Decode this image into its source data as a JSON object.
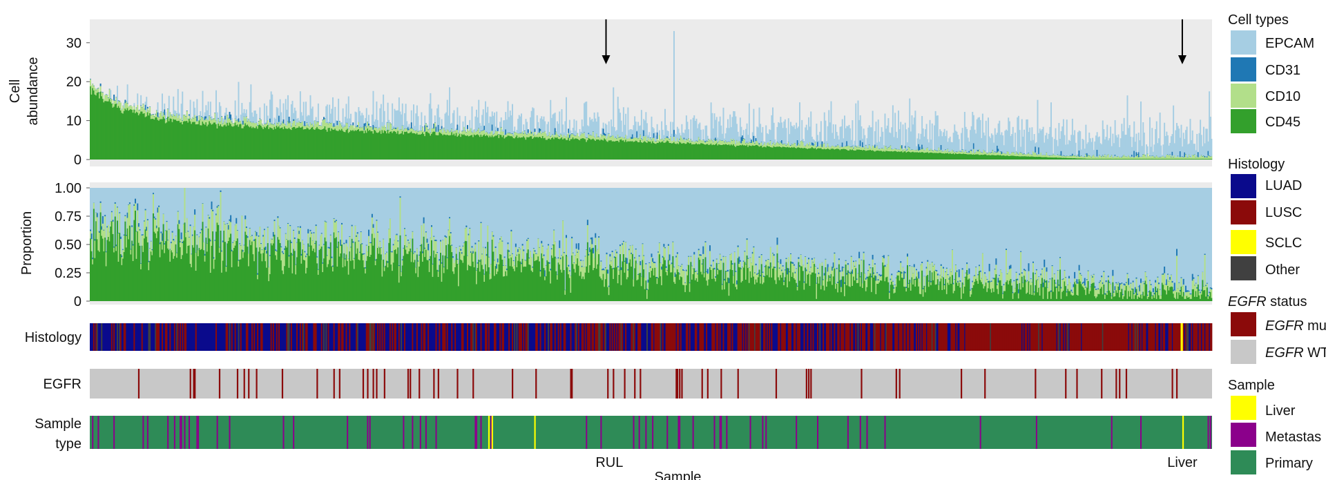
{
  "colors": {
    "EPCAM": "#a6cee3",
    "CD31": "#1f78b4",
    "CD10": "#b2df8a",
    "CD45": "#33a02c",
    "LUAD": "#0a0a8c",
    "LUSC": "#8b0a0a",
    "SCLC": "#ffff00",
    "Other": "#404040",
    "EGFR_mut": "#8b0a0a",
    "EGFR_WT": "#c8c8c8",
    "Liver": "#ffff00",
    "Metastasis": "#8b008b",
    "Primary": "#2e8b57",
    "panel_bg": "#ebebeb"
  },
  "legend": {
    "cell_types_title": "Cell types",
    "cell_types": [
      "EPCAM",
      "CD31",
      "CD10",
      "CD45"
    ],
    "histology_title": "Histology",
    "histology": [
      "LUAD",
      "LUSC",
      "SCLC",
      "Other"
    ],
    "egfr_title_italic": "EGFR",
    "egfr_title_rest": " status",
    "egfr_items": [
      {
        "italic": "EGFR",
        "rest": " mu"
      },
      {
        "italic": "EGFR",
        "rest": " WT"
      }
    ],
    "sample_title": "Sample",
    "sample": [
      "Liver",
      "Metastas",
      "Primary"
    ]
  },
  "chart_data": {
    "type": "bar",
    "n_samples": 1000,
    "stacking_order": [
      "CD45",
      "CD10",
      "CD31",
      "EPCAM"
    ],
    "x_label": "Sample",
    "x_annotations": [
      {
        "label": "RUL",
        "sample_fraction": 0.463
      },
      {
        "label": "Liver",
        "sample_fraction": 0.9735
      }
    ],
    "arrows_at_sample_fraction": [
      0.46,
      0.9735
    ],
    "panels": [
      {
        "id": "abundance",
        "ylabel": [
          "Cell",
          "abundance"
        ],
        "ylim": [
          0,
          36
        ],
        "yticks": [
          0,
          10,
          20,
          30
        ],
        "ytick_labels": [
          "0",
          "10",
          "20",
          "30"
        ],
        "description": "stacked cell abundance per sample, sorted by CD45 decreasing",
        "cd45_profile": {
          "start": 18,
          "fast_decay": 8,
          "fast_rate": 30,
          "linear_drop_end": 0.2
        },
        "total_profile": {
          "mean_start": 12.5,
          "mean_end": 6,
          "noise": 4,
          "max_observed": 33
        }
      },
      {
        "id": "proportion",
        "ylabel": [
          "Proportion"
        ],
        "ylim": [
          0,
          1
        ],
        "yticks": [
          0,
          0.25,
          0.5,
          0.75,
          1
        ],
        "ytick_labels": [
          "0",
          "0.25",
          "0.50",
          "0.75",
          "1.00"
        ],
        "description": "stacked cell type proportions per sample (sum = 1)",
        "cd45_proportion_profile": {
          "start": 0.55,
          "end": 0.05,
          "noise": 0.18
        },
        "cd10_proportion_mean": 0.1,
        "cd31_proportion_mean": 0.015
      }
    ],
    "tracks": [
      {
        "id": "histology",
        "label": [
          "Histology"
        ],
        "categories": [
          "LUAD",
          "LUSC",
          "SCLC",
          "Other"
        ],
        "approx_mix": "LUAD dominant in first ~60% of samples, increasingly LUSC toward right; single SCLC at ~0.9735"
      },
      {
        "id": "egfr",
        "label": [
          "EGFR"
        ],
        "categories": [
          "EGFR_WT",
          "EGFR_mut"
        ],
        "mut_positions": [
          0.043,
          0.089,
          0.093,
          0.092,
          0.115,
          0.131,
          0.137,
          0.141,
          0.148,
          0.171,
          0.202,
          0.217,
          0.222,
          0.255,
          0.262,
          0.285,
          0.293,
          0.306,
          0.243,
          0.247,
          0.252,
          0.31,
          0.283,
          0.327,
          0.341,
          0.376,
          0.397,
          0.428,
          0.429,
          0.461,
          0.466,
          0.476,
          0.485,
          0.49,
          0.522,
          0.523,
          0.525,
          0.527,
          0.545,
          0.55,
          0.562,
          0.577,
          0.611,
          0.638,
          0.642,
          0.64,
          0.687,
          0.718,
          0.721,
          0.776,
          0.797,
          0.842,
          0.869,
          0.879,
          0.901,
          0.914,
          0.917,
          0.923,
          0.964,
          0.968
        ]
      },
      {
        "id": "sample",
        "label": [
          "Sample",
          "type"
        ],
        "categories": [
          "Primary",
          "Metastasis",
          "Liver"
        ],
        "liver_positions": [
          0.355,
          0.358,
          0.396,
          0.9735
        ],
        "approx_metastasis_fraction": 0.06
      }
    ]
  }
}
